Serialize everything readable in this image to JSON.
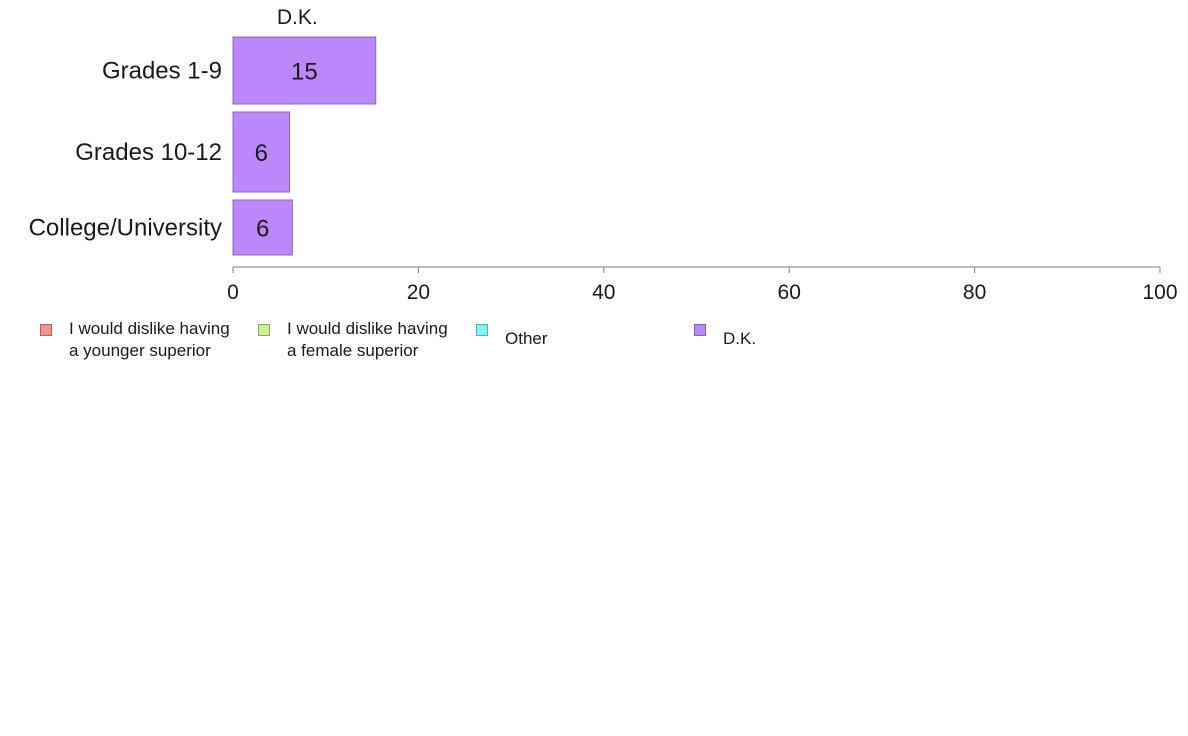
{
  "chart_data": {
    "type": "bar",
    "orientation": "horizontal",
    "stacked": true,
    "title": "",
    "xlabel": "",
    "ylabel": "",
    "xlim": [
      0,
      100
    ],
    "x_ticks": [
      "0",
      "20",
      "40",
      "60",
      "80",
      "100"
    ],
    "grid": false,
    "categories": [
      "Grades 1-9",
      "Grades 10-12",
      "College/University"
    ],
    "series": [
      {
        "name": "I would dislike having a younger superior",
        "label_lines": [
          "I would dislike having",
          "a younger superior"
        ],
        "color": "#f88f8a",
        "values": [
          0,
          0,
          0
        ]
      },
      {
        "name": "I would dislike having a female superior",
        "label_lines": [
          "I would dislike having",
          "a female superior"
        ],
        "color": "#c5f58c",
        "values": [
          0,
          0,
          0
        ]
      },
      {
        "name": "Other",
        "label_lines": [
          "Other"
        ],
        "color": "#7ff7f7",
        "values": [
          0,
          0,
          0
        ]
      },
      {
        "name": "D.K.",
        "label_lines": [
          "D.K."
        ],
        "color": "#bb88fb",
        "values": [
          15.4,
          6.1,
          6.4
        ],
        "data_labels": [
          "15",
          "6",
          "6"
        ]
      }
    ],
    "segment_headers": [
      "D.K."
    ],
    "legend_position": "bottom-left"
  }
}
